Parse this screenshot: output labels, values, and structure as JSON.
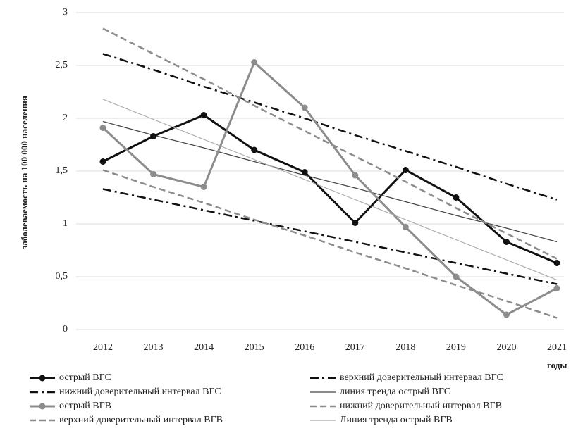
{
  "chart_data": {
    "type": "line",
    "y_label": "заболеваемость на 100 000 населения",
    "x_label": "годы",
    "categories": [
      "2012",
      "2013",
      "2014",
      "2015",
      "2016",
      "2017",
      "2018",
      "2019",
      "2020",
      "2021"
    ],
    "ylim": [
      0,
      3
    ],
    "yticks": [
      0,
      {
        "value": 0.5,
        "label": "0,5"
      },
      1,
      {
        "value": 1.5,
        "label": "1,5"
      },
      2,
      {
        "value": 2.5,
        "label": "2,5"
      },
      3
    ],
    "grid": true,
    "series": [
      {
        "name": "острый ВГС",
        "color": "#111111",
        "line_style": "solid",
        "width": 3,
        "marker": true,
        "values": [
          1.59,
          1.83,
          2.03,
          1.7,
          1.49,
          1.01,
          1.51,
          1.25,
          0.83,
          0.63
        ]
      },
      {
        "name": "верхний доверительный интервал ВГС",
        "color": "#111111",
        "line_style": "dashdot",
        "width": 2.5,
        "marker": false,
        "values": [
          2.61,
          2.46,
          2.3,
          2.15,
          2.0,
          1.84,
          1.69,
          1.54,
          1.38,
          1.23
        ]
      },
      {
        "name": "нижний доверительный интервал ВГС",
        "color": "#111111",
        "line_style": "dashdot",
        "width": 2.5,
        "marker": false,
        "values": [
          1.33,
          1.23,
          1.13,
          1.03,
          0.93,
          0.83,
          0.73,
          0.63,
          0.53,
          0.43
        ]
      },
      {
        "name": "линия тренда острый ВГС",
        "color": "#444444",
        "line_style": "solid",
        "width": 1.2,
        "marker": false,
        "values": [
          1.97,
          1.84,
          1.72,
          1.59,
          1.46,
          1.34,
          1.21,
          1.08,
          0.96,
          0.83
        ]
      },
      {
        "name": "острый ВГВ",
        "color": "#8c8c8c",
        "line_style": "solid",
        "width": 3,
        "marker": true,
        "values": [
          1.91,
          1.47,
          1.35,
          2.53,
          2.1,
          1.46,
          0.97,
          0.5,
          0.14,
          0.39
        ]
      },
      {
        "name": "нижний доверительный интервал ВГВ",
        "color": "#8c8c8c",
        "line_style": "dashed",
        "width": 2.5,
        "marker": false,
        "values": [
          1.51,
          1.35,
          1.2,
          1.04,
          0.89,
          0.73,
          0.58,
          0.42,
          0.27,
          0.11
        ]
      },
      {
        "name": "верхний доверительный интервал ВГВ",
        "color": "#8c8c8c",
        "line_style": "dashed",
        "width": 2.5,
        "marker": false,
        "values": [
          2.85,
          2.61,
          2.37,
          2.12,
          1.88,
          1.64,
          1.4,
          1.15,
          0.91,
          0.67
        ]
      },
      {
        "name": "Линия тренда острый ВГВ",
        "color": "#aaaaaa",
        "line_style": "solid",
        "width": 1.2,
        "marker": false,
        "values": [
          2.18,
          1.99,
          1.8,
          1.61,
          1.42,
          1.23,
          1.04,
          0.85,
          0.66,
          0.47
        ]
      }
    ]
  }
}
